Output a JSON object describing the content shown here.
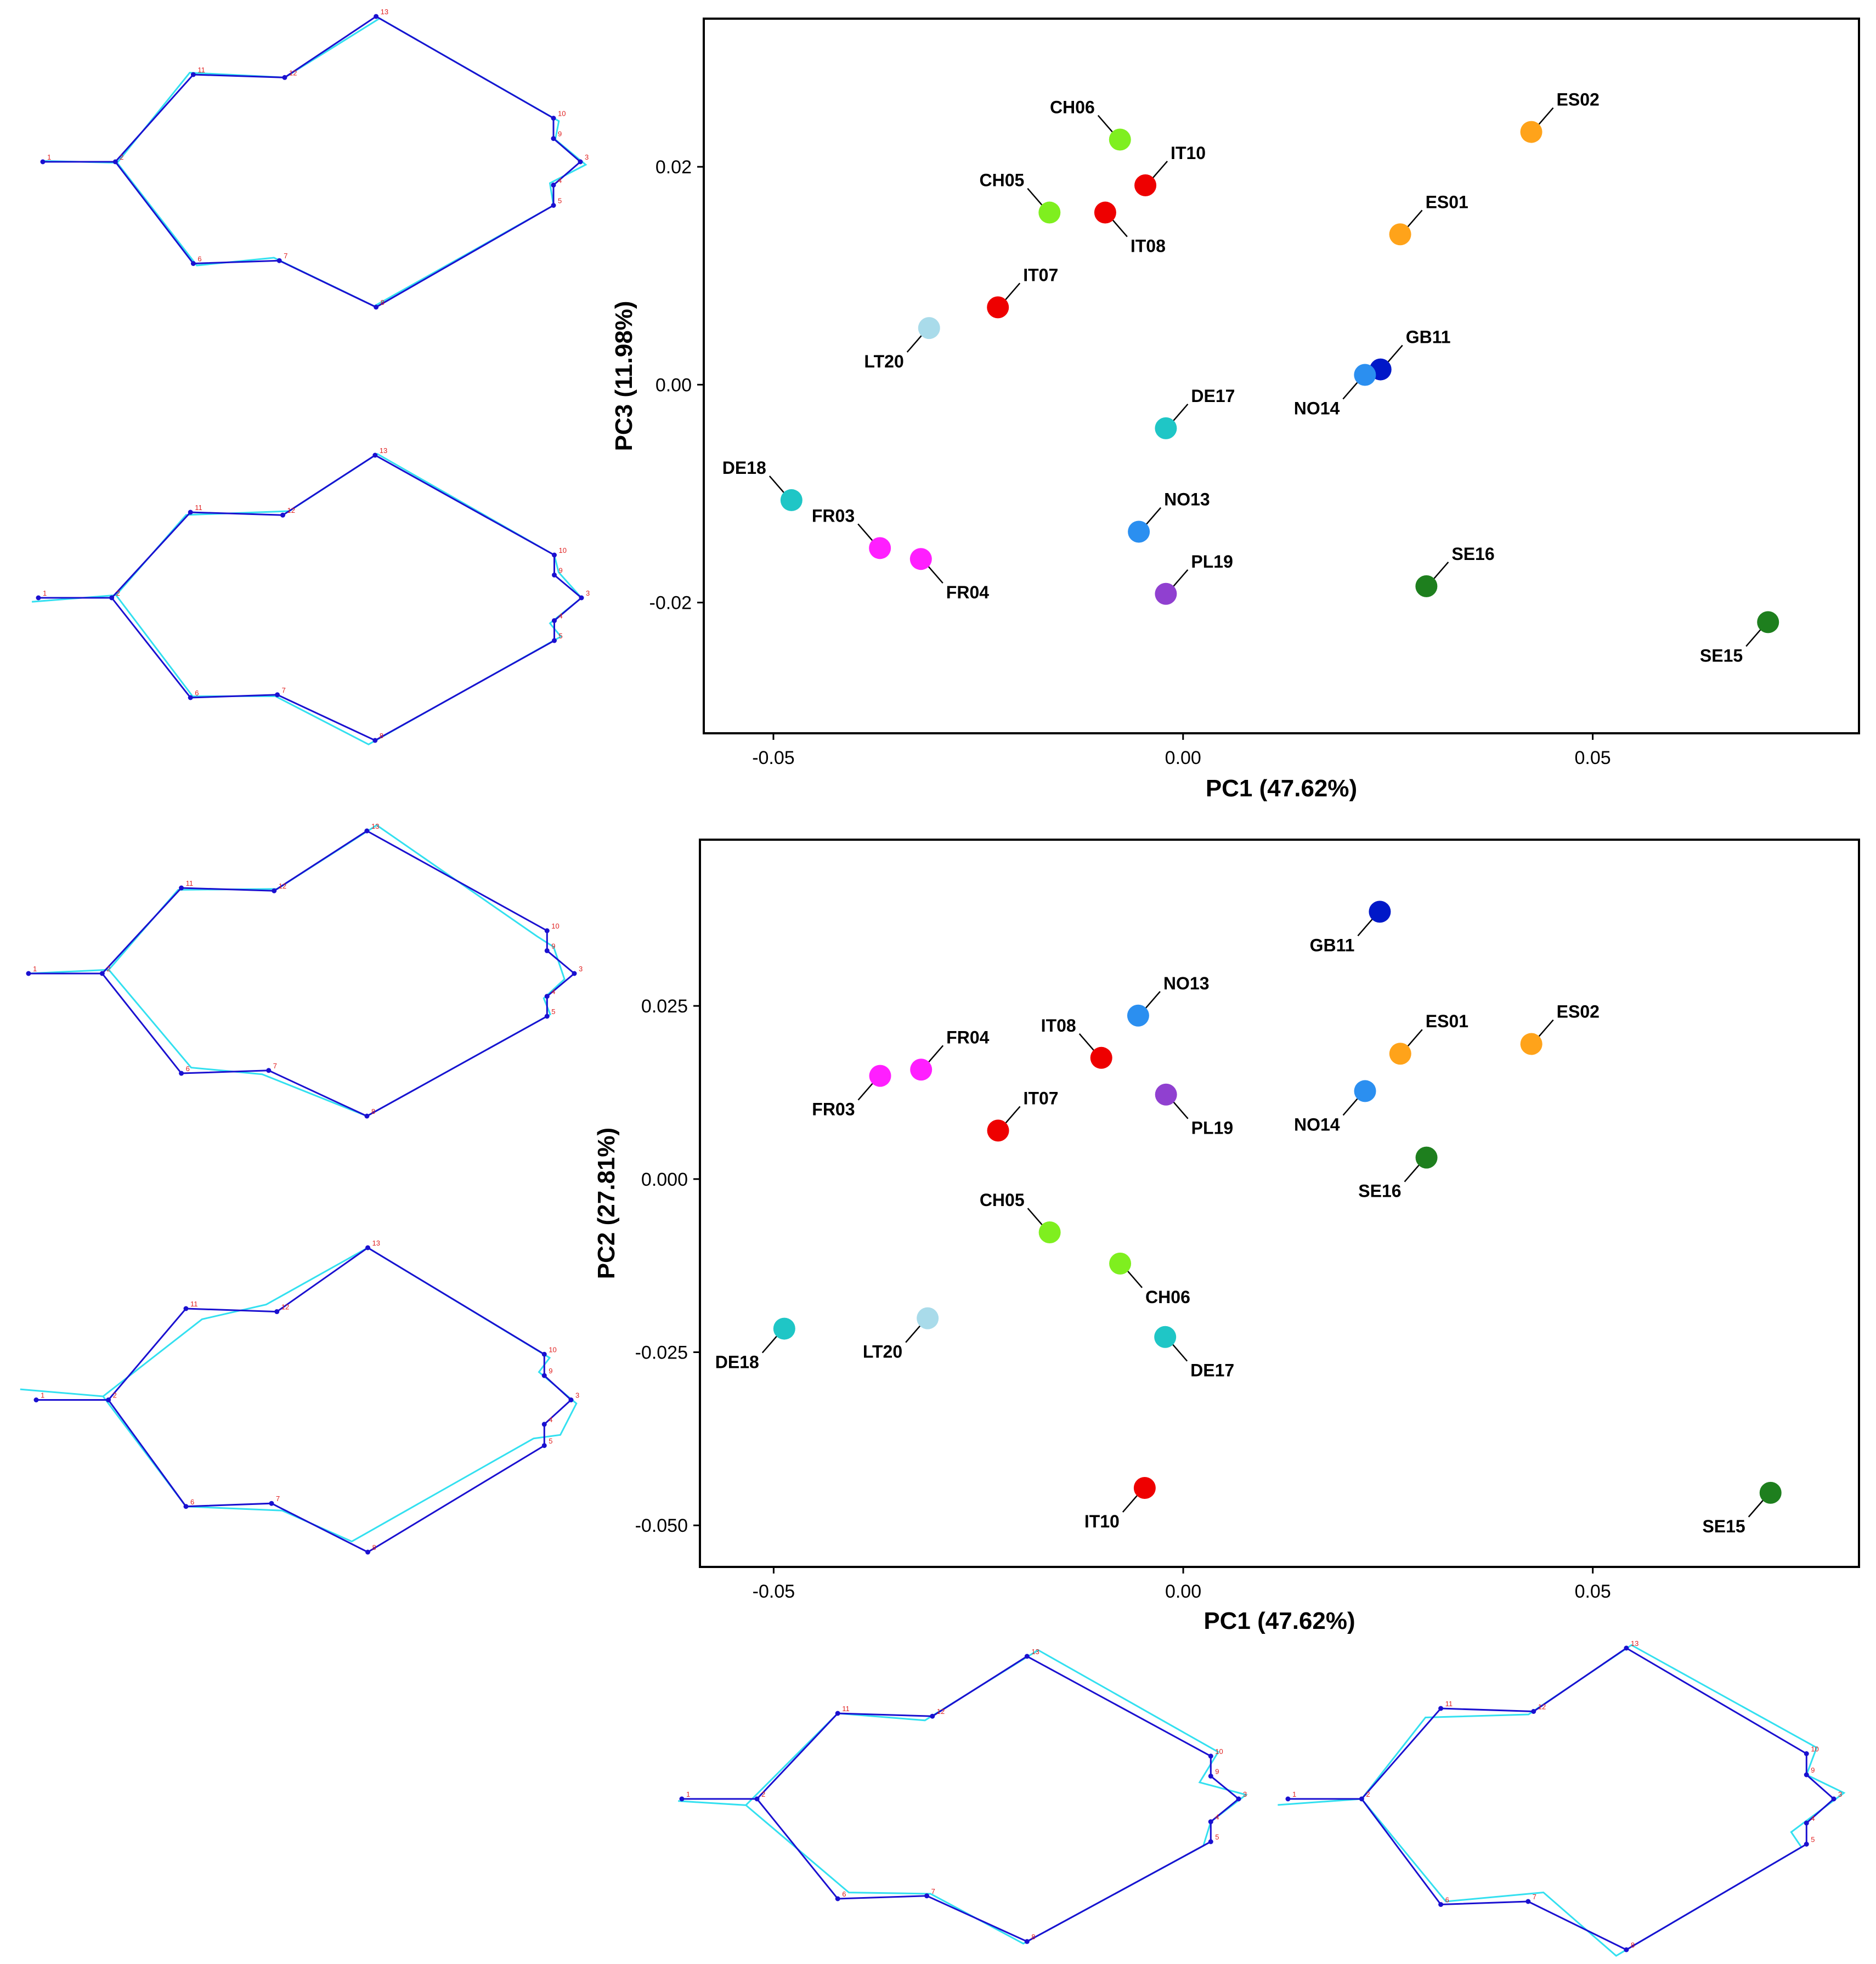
{
  "colors": {
    "CH": "#7fef1f",
    "IT": "#ee0000",
    "ES": "#ffa31a",
    "LT": "#a9dbea",
    "GB": "#0018c8",
    "NO": "#2b8ff0",
    "DE": "#1fc6c6",
    "FR": "#ff1fff",
    "PL": "#9040d0",
    "SE": "#1e7f1e",
    "wire_dark": "#1a10d0",
    "wire_light": "#33e0f0",
    "landmark_number": "#e02020"
  },
  "landmark_numbers": [
    "1",
    "2",
    "3",
    "4",
    "5",
    "6",
    "7",
    "8",
    "9",
    "10",
    "11",
    "12",
    "13"
  ],
  "chart_data": [
    {
      "type": "scatter",
      "id": "pc1-pc3",
      "title": "",
      "xlabel": "PC1 (47.62%)",
      "ylabel": "PC3 (11.98%)",
      "xlim": [
        -0.0585,
        0.0825
      ],
      "ylim": [
        -0.032,
        0.0336
      ],
      "xticks": [
        {
          "value": -0.05,
          "label": "-0.05"
        },
        {
          "value": 0.0,
          "label": "0.00"
        },
        {
          "value": 0.05,
          "label": "0.05"
        }
      ],
      "yticks": [
        {
          "value": 0.02,
          "label": "0.02"
        },
        {
          "value": 0.0,
          "label": "0.00"
        },
        {
          "value": -0.02,
          "label": "-0.02"
        }
      ],
      "points": [
        {
          "label": "CH06",
          "group": "CH",
          "x": -0.0077,
          "y": 0.0225,
          "pos": "ul"
        },
        {
          "label": "IT10",
          "group": "IT",
          "x": -0.0046,
          "y": 0.0183,
          "pos": "ur"
        },
        {
          "label": "ES02",
          "group": "ES",
          "x": 0.0425,
          "y": 0.0232,
          "pos": "ur"
        },
        {
          "label": "CH05",
          "group": "CH",
          "x": -0.0163,
          "y": 0.0158,
          "pos": "ul"
        },
        {
          "label": "IT08",
          "group": "IT",
          "x": -0.0095,
          "y": 0.0158,
          "pos": "lr"
        },
        {
          "label": "ES01",
          "group": "ES",
          "x": 0.0265,
          "y": 0.0138,
          "pos": "ur"
        },
        {
          "label": "IT07",
          "group": "IT",
          "x": -0.0226,
          "y": 0.0071,
          "pos": "ur"
        },
        {
          "label": "LT20",
          "group": "LT",
          "x": -0.031,
          "y": 0.0052,
          "pos": "ll"
        },
        {
          "label": "GB11",
          "group": "GB",
          "x": 0.0241,
          "y": 0.0014,
          "pos": "ur"
        },
        {
          "label": "NO14",
          "group": "NO",
          "x": 0.0222,
          "y": 0.0009,
          "pos": "ll"
        },
        {
          "label": "DE17",
          "group": "DE",
          "x": -0.0021,
          "y": -0.004,
          "pos": "ur"
        },
        {
          "label": "DE18",
          "group": "DE",
          "x": -0.0478,
          "y": -0.0106,
          "pos": "ul"
        },
        {
          "label": "NO13",
          "group": "NO",
          "x": -0.0054,
          "y": -0.0135,
          "pos": "ur"
        },
        {
          "label": "FR03",
          "group": "FR",
          "x": -0.037,
          "y": -0.015,
          "pos": "ul"
        },
        {
          "label": "FR04",
          "group": "FR",
          "x": -0.032,
          "y": -0.016,
          "pos": "lr"
        },
        {
          "label": "PL19",
          "group": "PL",
          "x": -0.0021,
          "y": -0.0192,
          "pos": "ur"
        },
        {
          "label": "SE16",
          "group": "SE",
          "x": 0.0297,
          "y": -0.0185,
          "pos": "ur"
        },
        {
          "label": "SE15",
          "group": "SE",
          "x": 0.0714,
          "y": -0.0218,
          "pos": "ll"
        }
      ]
    },
    {
      "type": "scatter",
      "id": "pc1-pc2",
      "title": "",
      "xlabel": "PC1 (47.62%)",
      "ylabel": "PC2 (27.81%)",
      "xlim": [
        -0.059,
        0.0825
      ],
      "ylim": [
        -0.056,
        0.049
      ],
      "xticks": [
        {
          "value": -0.05,
          "label": "-0.05"
        },
        {
          "value": 0.0,
          "label": "0.00"
        },
        {
          "value": 0.05,
          "label": "0.05"
        }
      ],
      "yticks": [
        {
          "value": 0.025,
          "label": "0.025"
        },
        {
          "value": 0.0,
          "label": "0.000"
        },
        {
          "value": -0.025,
          "label": "-0.025"
        },
        {
          "value": -0.05,
          "label": "-0.050"
        }
      ],
      "points": [
        {
          "label": "GB11",
          "group": "GB",
          "x": 0.024,
          "y": 0.0386,
          "pos": "ll"
        },
        {
          "label": "NO13",
          "group": "NO",
          "x": -0.0055,
          "y": 0.0236,
          "pos": "ur"
        },
        {
          "label": "ES02",
          "group": "ES",
          "x": 0.0425,
          "y": 0.0195,
          "pos": "ur"
        },
        {
          "label": "ES01",
          "group": "ES",
          "x": 0.0265,
          "y": 0.0181,
          "pos": "ur"
        },
        {
          "label": "IT08",
          "group": "IT",
          "x": -0.01,
          "y": 0.0175,
          "pos": "ul"
        },
        {
          "label": "FR04",
          "group": "FR",
          "x": -0.032,
          "y": 0.0158,
          "pos": "ur"
        },
        {
          "label": "FR03",
          "group": "FR",
          "x": -0.037,
          "y": 0.0149,
          "pos": "ll"
        },
        {
          "label": "NO14",
          "group": "NO",
          "x": 0.0222,
          "y": 0.0127,
          "pos": "ll"
        },
        {
          "label": "PL19",
          "group": "PL",
          "x": -0.0021,
          "y": 0.0122,
          "pos": "lr"
        },
        {
          "label": "IT07",
          "group": "IT",
          "x": -0.0226,
          "y": 0.007,
          "pos": "ur"
        },
        {
          "label": "SE16",
          "group": "SE",
          "x": 0.0297,
          "y": 0.0031,
          "pos": "ll"
        },
        {
          "label": "CH05",
          "group": "CH",
          "x": -0.0163,
          "y": -0.0077,
          "pos": "ul"
        },
        {
          "label": "CH06",
          "group": "CH",
          "x": -0.0077,
          "y": -0.0122,
          "pos": "lr"
        },
        {
          "label": "LT20",
          "group": "LT",
          "x": -0.0312,
          "y": -0.0201,
          "pos": "ll"
        },
        {
          "label": "DE18",
          "group": "DE",
          "x": -0.0487,
          "y": -0.0216,
          "pos": "ll"
        },
        {
          "label": "DE17",
          "group": "DE",
          "x": -0.0022,
          "y": -0.0228,
          "pos": "lr"
        },
        {
          "label": "IT10",
          "group": "IT",
          "x": -0.0047,
          "y": -0.0446,
          "pos": "ll"
        },
        {
          "label": "SE15",
          "group": "SE",
          "x": 0.0717,
          "y": -0.0453,
          "pos": "ll"
        }
      ]
    }
  ]
}
